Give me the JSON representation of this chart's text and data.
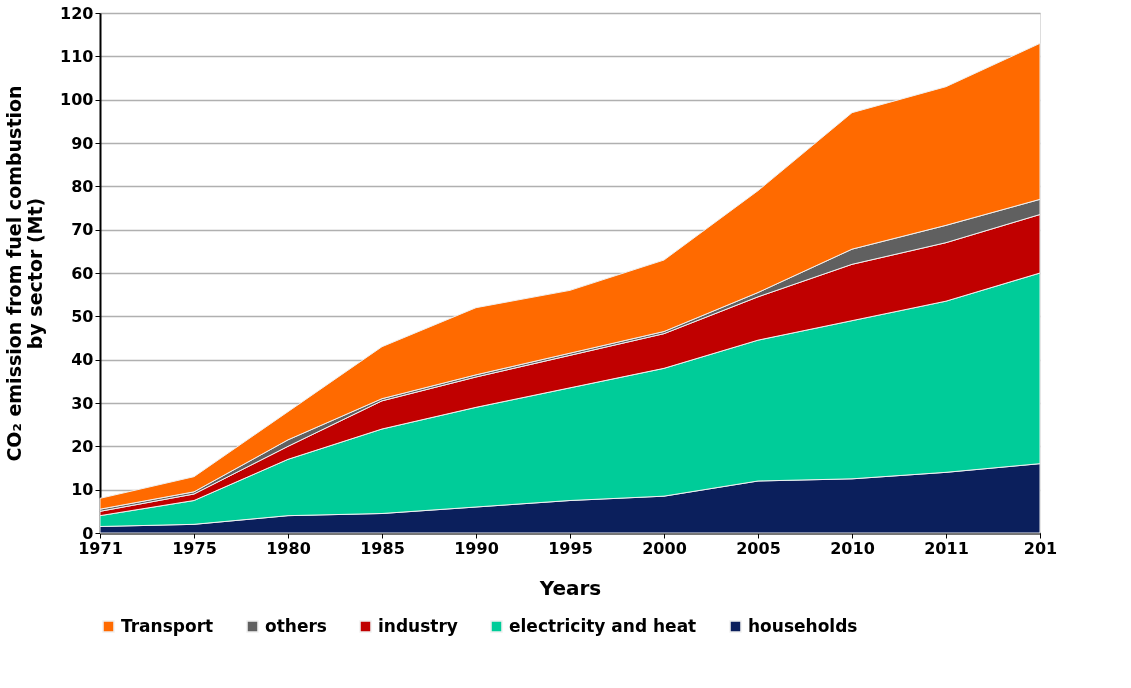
{
  "chart_data": {
    "type": "area",
    "stacked": true,
    "xlabel": "Years",
    "ylabel": "CO₂ emission from fuel combustion by sector (Mt)",
    "categories": [
      "1971",
      "1975",
      "1980",
      "1985",
      "1990",
      "1995",
      "2000",
      "2005",
      "2010",
      "2011",
      "201"
    ],
    "series": [
      {
        "name": "households",
        "color": "#0b1f5c",
        "values": [
          1.5,
          2,
          4,
          4.5,
          6,
          7.5,
          8.5,
          12,
          12.5,
          14,
          16
        ]
      },
      {
        "name": "electricity and heat",
        "color": "#00cc99",
        "values": [
          2.5,
          5.5,
          13,
          19.5,
          23,
          26,
          29.5,
          32.5,
          36.5,
          39.5,
          44
        ]
      },
      {
        "name": "industry",
        "color": "#c00000",
        "values": [
          1,
          1.5,
          3,
          6.5,
          7,
          7.5,
          8,
          10,
          13,
          13.5,
          13.5
        ]
      },
      {
        "name": "others",
        "color": "#606060",
        "values": [
          0.5,
          0.5,
          1.5,
          0.5,
          0.5,
          0.5,
          0.5,
          1,
          3.5,
          4,
          3.5
        ]
      },
      {
        "name": "Transport",
        "color": "#ff6a00",
        "values": [
          2.5,
          3.5,
          6.5,
          12,
          15.5,
          14.5,
          16.5,
          23.5,
          31.5,
          32,
          36
        ]
      }
    ],
    "ylim": [
      0,
      120
    ],
    "yticks": [
      0,
      10,
      20,
      30,
      40,
      50,
      60,
      70,
      80,
      90,
      100,
      110,
      120
    ],
    "grid": "y",
    "legend": "bottom"
  }
}
